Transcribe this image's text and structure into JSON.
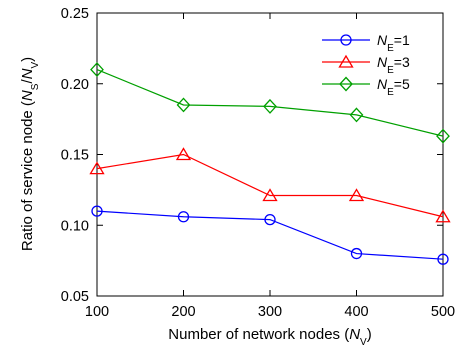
{
  "chart_data": {
    "type": "line",
    "xlabel": {
      "prefix": "Number of network nodes (",
      "var": "N",
      "sub": "V",
      "suffix": ")"
    },
    "ylabel": {
      "prefix": "Ratio of service node (",
      "var1": "N",
      "sub1": "S",
      "slash": "/",
      "var2": "N",
      "sub2": "V",
      "suffix": ")"
    },
    "x": [
      100,
      200,
      300,
      400,
      500
    ],
    "xticks": [
      "100",
      "200",
      "300",
      "400",
      "500"
    ],
    "yticks": [
      "0.05",
      "0.10",
      "0.15",
      "0.20",
      "0.25"
    ],
    "xlim": [
      100,
      500
    ],
    "ylim": [
      0.05,
      0.25
    ],
    "legend_position": "top-right",
    "series": [
      {
        "name": {
          "var": "N",
          "sub": "E",
          "rest": "=1"
        },
        "color": "#0000ff",
        "marker": "circle",
        "values": [
          0.11,
          0.106,
          0.104,
          0.08,
          0.076
        ]
      },
      {
        "name": {
          "var": "N",
          "sub": "E",
          "rest": "=3"
        },
        "color": "#ff0000",
        "marker": "triangle",
        "values": [
          0.14,
          0.15,
          0.121,
          0.121,
          0.106
        ]
      },
      {
        "name": {
          "var": "N",
          "sub": "E",
          "rest": "=5"
        },
        "color": "#00a000",
        "marker": "diamond",
        "values": [
          0.21,
          0.185,
          0.184,
          0.178,
          0.163
        ]
      }
    ]
  }
}
